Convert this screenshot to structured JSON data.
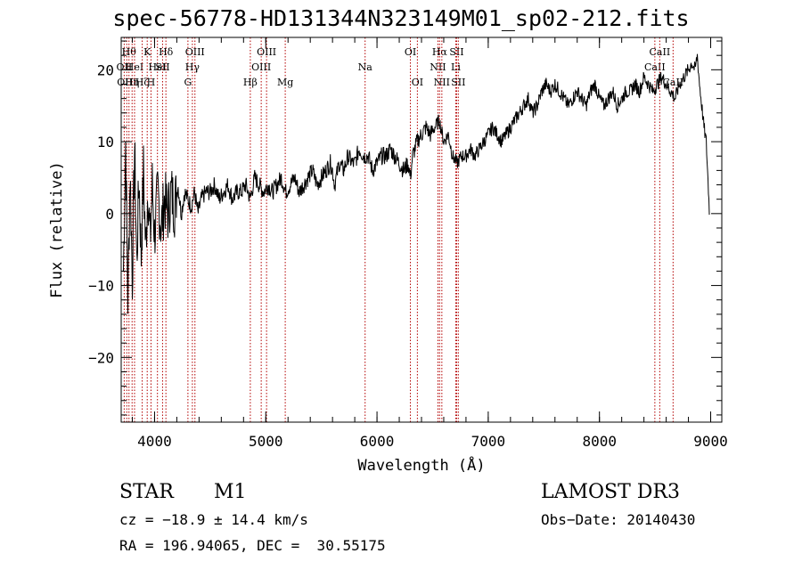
{
  "chart_data": {
    "type": "line",
    "title": "spec-56778-HD131344N323149M01_sp02-212.fits",
    "xlabel": "Wavelength (Å)",
    "ylabel": "Flux (relative)",
    "xlim": [
      3700,
      9100
    ],
    "ylim": [
      -29,
      24.5
    ],
    "x_ticks": [
      4000,
      5000,
      6000,
      7000,
      8000,
      9000
    ],
    "y_ticks": [
      -20,
      -10,
      0,
      10,
      20
    ],
    "series": [
      {
        "name": "flux",
        "x": [
          3720,
          3740,
          3760,
          3780,
          3800,
          3820,
          3840,
          3860,
          3880,
          3900,
          3920,
          3940,
          3960,
          3980,
          4000,
          4030,
          4060,
          4090,
          4120,
          4150,
          4180,
          4210,
          4240,
          4270,
          4300,
          4330,
          4360,
          4390,
          4420,
          4460,
          4500,
          4540,
          4580,
          4620,
          4660,
          4700,
          4740,
          4780,
          4820,
          4860,
          4900,
          4940,
          4980,
          5020,
          5060,
          5100,
          5140,
          5180,
          5220,
          5260,
          5300,
          5340,
          5380,
          5420,
          5460,
          5500,
          5540,
          5580,
          5600,
          5620,
          5660,
          5700,
          5740,
          5780,
          5800,
          5840,
          5880,
          5920,
          5960,
          6000,
          6040,
          6080,
          6120,
          6160,
          6200,
          6240,
          6280,
          6300,
          6320,
          6360,
          6400,
          6440,
          6480,
          6520,
          6560,
          6600,
          6640,
          6680,
          6720,
          6760,
          6800,
          6840,
          6880,
          6920,
          6960,
          7000,
          7040,
          7080,
          7120,
          7160,
          7200,
          7240,
          7280,
          7320,
          7360,
          7400,
          7440,
          7480,
          7520,
          7560,
          7600,
          7640,
          7680,
          7720,
          7760,
          7800,
          7840,
          7880,
          7920,
          7960,
          8000,
          8040,
          8080,
          8120,
          8160,
          8200,
          8240,
          8280,
          8320,
          8360,
          8400,
          8440,
          8480,
          8520,
          8560,
          8600,
          8640,
          8680,
          8720,
          8760,
          8800,
          8830,
          8860,
          8880,
          8900,
          8920,
          8940,
          8960,
          8990
        ],
        "y": [
          -8,
          10,
          -12,
          6,
          -9,
          9,
          -7,
          5,
          -6,
          6,
          -5,
          4,
          -4,
          4,
          -3,
          3,
          -2,
          2,
          0,
          3,
          1,
          4,
          0,
          3,
          2,
          1,
          3,
          0,
          2,
          3,
          3,
          4,
          2,
          3,
          4,
          2,
          3,
          3,
          4,
          2,
          5,
          4,
          3,
          4,
          3,
          4,
          5,
          3,
          4,
          5,
          3,
          4,
          5,
          6,
          4,
          5,
          6,
          7,
          6,
          4,
          7,
          6,
          8,
          7,
          7,
          9,
          8,
          8,
          6,
          7,
          8,
          8,
          9,
          8,
          7,
          6,
          7,
          5,
          8,
          10,
          11,
          12,
          11,
          12,
          13,
          10,
          11,
          8,
          7,
          8,
          8,
          9,
          8,
          9,
          10,
          11,
          12,
          11,
          10,
          11,
          12,
          13,
          14,
          15,
          16,
          14,
          15,
          17,
          18,
          17,
          18,
          17,
          16,
          15,
          16,
          17,
          16,
          15,
          17,
          18,
          16,
          15,
          16,
          17,
          15,
          16,
          17,
          17,
          18,
          17,
          19,
          18,
          17,
          18,
          19,
          18,
          17,
          16,
          18,
          19,
          20,
          21,
          20,
          22,
          18,
          15,
          12,
          10,
          0
        ]
      }
    ],
    "spectral_lines": [
      {
        "wavelength": 3727,
        "label": "OII",
        "tier": 1
      },
      {
        "wavelength": 3750,
        "label": "OIII",
        "tier": 2
      },
      {
        "wavelength": 3770,
        "label": "Hθ",
        "tier": 0
      },
      {
        "wavelength": 3798,
        "label": "Hη",
        "tier": 2
      },
      {
        "wavelength": 3820,
        "label": "HeI",
        "tier": 1
      },
      {
        "wavelength": 3889,
        "label": "Hζ",
        "tier": 2
      },
      {
        "wavelength": 3934,
        "label": "K",
        "tier": 0
      },
      {
        "wavelength": 3968,
        "label": "H",
        "tier": 2
      },
      {
        "wavelength": 4026,
        "label": "HeI",
        "tier": 1
      },
      {
        "wavelength": 4072,
        "label": "SII",
        "tier": 1
      },
      {
        "wavelength": 4102,
        "label": "Hδ",
        "tier": 0
      },
      {
        "wavelength": 4300,
        "label": "G",
        "tier": 2
      },
      {
        "wavelength": 4340,
        "label": "Hγ",
        "tier": 1
      },
      {
        "wavelength": 4363,
        "label": "OIII",
        "tier": 0
      },
      {
        "wavelength": 4861,
        "label": "Hβ",
        "tier": 2
      },
      {
        "wavelength": 4959,
        "label": "OIII",
        "tier": 1
      },
      {
        "wavelength": 5007,
        "label": "OIII",
        "tier": 0
      },
      {
        "wavelength": 5175,
        "label": "Mg",
        "tier": 2
      },
      {
        "wavelength": 5893,
        "label": "Na",
        "tier": 1
      },
      {
        "wavelength": 6300,
        "label": "OI",
        "tier": 0
      },
      {
        "wavelength": 6363,
        "label": "OI",
        "tier": 2
      },
      {
        "wavelength": 6548,
        "label": "NII",
        "tier": 1
      },
      {
        "wavelength": 6563,
        "label": "Hα",
        "tier": 0
      },
      {
        "wavelength": 6583,
        "label": "NII",
        "tier": 2
      },
      {
        "wavelength": 6708,
        "label": "Li",
        "tier": 1
      },
      {
        "wavelength": 6716,
        "label": "SII",
        "tier": 0
      },
      {
        "wavelength": 6731,
        "label": "SII",
        "tier": 2
      },
      {
        "wavelength": 8498,
        "label": "CaII",
        "tier": 1
      },
      {
        "wavelength": 8542,
        "label": "CaII",
        "tier": 0
      },
      {
        "wavelength": 8662,
        "label": "CaII",
        "tier": 2
      }
    ]
  },
  "info": {
    "object_class": "STAR",
    "subclass": "M1",
    "survey": "LAMOST DR3",
    "cz": "cz = −18.9 ± 14.4 km/s",
    "obs_date": "Obs−Date: 20140430",
    "radec": "RA = 196.94065, DEC =  30.55175"
  }
}
